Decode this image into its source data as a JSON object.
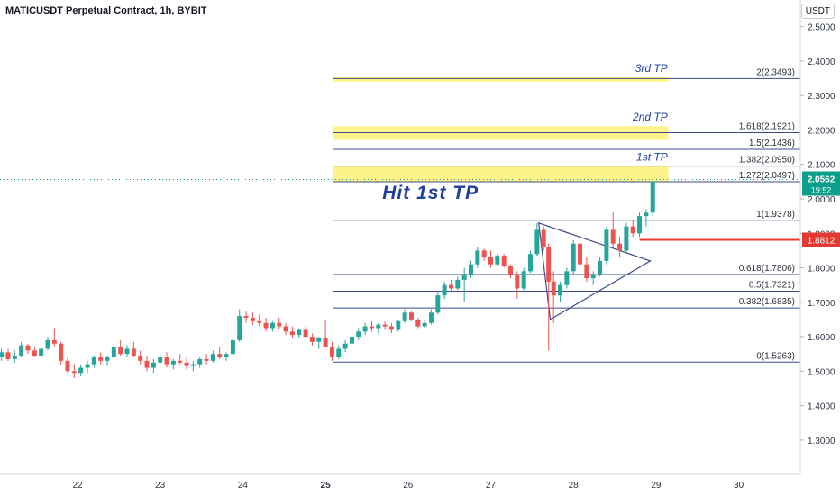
{
  "title": "MATICUSDT Perpetual Contract, 1h, BYBIT",
  "currency": "USDT",
  "colors": {
    "up": "#26a69a",
    "down": "#ef5350",
    "fib": "#3e4a8c",
    "tp_fill": "#fdf38b",
    "annotation": "#1f3f9e",
    "current_price_bg": "#0b9e8a",
    "stop_line": "#e53935",
    "axis_text": "#2e3440",
    "grid": "#f1f3f6"
  },
  "chart_data": {
    "type": "candlestick",
    "ylim": [
      1.25,
      2.52
    ],
    "y_ticks": [
      "1.3000",
      "1.4000",
      "1.5000",
      "1.6000",
      "1.7000",
      "1.8000",
      "1.9000",
      "2.0000",
      "2.1000",
      "2.2000",
      "2.3000",
      "2.4000",
      "2.5000"
    ],
    "x_ticks": [
      "22",
      "23",
      "24",
      "25",
      "26",
      "27",
      "28",
      "29",
      "30"
    ],
    "x_ticks_bold": "25",
    "fib_levels": [
      {
        "label": "0(1.5263)",
        "value": 1.5263
      },
      {
        "label": "0.382(1.6835)",
        "value": 1.6835
      },
      {
        "label": "0.5(1.7321)",
        "value": 1.7321
      },
      {
        "label": "0.618(1.7806)",
        "value": 1.7806
      },
      {
        "label": "1(1.9378)",
        "value": 1.9378
      },
      {
        "label": "1.272(2.0497)",
        "value": 2.0497
      },
      {
        "label": "1.382(2.0950)",
        "value": 2.095
      },
      {
        "label": "1.5(2.1436)",
        "value": 2.1436
      },
      {
        "label": "1.618(2.1921)",
        "value": 2.1921
      },
      {
        "label": "2(2.3493)",
        "value": 2.3493
      }
    ],
    "tp_zones": [
      {
        "label": "1st TP",
        "low": 2.0497,
        "high": 2.095
      },
      {
        "label": "2nd TP",
        "low": 2.171,
        "high": 2.211
      },
      {
        "label": "3rd TP",
        "low": 2.34,
        "high": 2.353
      }
    ],
    "annotation": "Hit 1st TP",
    "current_price": {
      "value": 2.0562,
      "label": "2.0562",
      "countdown": "19:52"
    },
    "stop_level": {
      "value": 1.8812,
      "label": "1.8812"
    },
    "triangle_points": [
      [
        27.58,
        1.93
      ],
      [
        28.93,
        1.82
      ],
      [
        27.72,
        1.65
      ]
    ],
    "candles": [
      [
        20.92,
        1.55,
        1.555,
        1.52,
        1.535
      ],
      [
        21.0,
        1.535,
        1.55,
        1.525,
        1.54
      ],
      [
        21.08,
        1.54,
        1.565,
        1.53,
        1.555
      ],
      [
        21.16,
        1.555,
        1.565,
        1.53,
        1.535
      ],
      [
        21.24,
        1.535,
        1.56,
        1.525,
        1.545
      ],
      [
        21.32,
        1.545,
        1.585,
        1.54,
        1.575
      ],
      [
        21.4,
        1.575,
        1.58,
        1.55,
        1.56
      ],
      [
        21.48,
        1.56,
        1.57,
        1.54,
        1.545
      ],
      [
        21.56,
        1.545,
        1.575,
        1.54,
        1.565
      ],
      [
        21.64,
        1.565,
        1.6,
        1.56,
        1.59
      ],
      [
        21.72,
        1.59,
        1.625,
        1.57,
        1.58
      ],
      [
        21.8,
        1.58,
        1.585,
        1.52,
        1.53
      ],
      [
        21.88,
        1.53,
        1.54,
        1.49,
        1.5
      ],
      [
        21.96,
        1.5,
        1.52,
        1.48,
        1.495
      ],
      [
        22.04,
        1.495,
        1.52,
        1.485,
        1.51
      ],
      [
        22.12,
        1.51,
        1.53,
        1.495,
        1.52
      ],
      [
        22.2,
        1.52,
        1.545,
        1.51,
        1.54
      ],
      [
        22.28,
        1.54,
        1.555,
        1.52,
        1.53
      ],
      [
        22.36,
        1.53,
        1.545,
        1.515,
        1.54
      ],
      [
        22.44,
        1.54,
        1.58,
        1.535,
        1.57
      ],
      [
        22.52,
        1.57,
        1.59,
        1.545,
        1.55
      ],
      [
        22.6,
        1.55,
        1.575,
        1.54,
        1.565
      ],
      [
        22.68,
        1.565,
        1.585,
        1.54,
        1.545
      ],
      [
        22.76,
        1.545,
        1.56,
        1.52,
        1.53
      ],
      [
        22.84,
        1.53,
        1.545,
        1.5,
        1.51
      ],
      [
        22.92,
        1.51,
        1.535,
        1.495,
        1.525
      ],
      [
        23.0,
        1.525,
        1.55,
        1.515,
        1.54
      ],
      [
        23.08,
        1.54,
        1.555,
        1.51,
        1.52
      ],
      [
        23.16,
        1.52,
        1.535,
        1.505,
        1.53
      ],
      [
        23.24,
        1.53,
        1.55,
        1.52,
        1.525
      ],
      [
        23.32,
        1.525,
        1.54,
        1.505,
        1.515
      ],
      [
        23.4,
        1.515,
        1.53,
        1.5,
        1.52
      ],
      [
        23.48,
        1.52,
        1.54,
        1.51,
        1.535
      ],
      [
        23.56,
        1.535,
        1.55,
        1.52,
        1.53
      ],
      [
        23.64,
        1.53,
        1.56,
        1.525,
        1.55
      ],
      [
        23.72,
        1.55,
        1.57,
        1.535,
        1.54
      ],
      [
        23.8,
        1.54,
        1.555,
        1.53,
        1.55
      ],
      [
        23.88,
        1.55,
        1.6,
        1.545,
        1.59
      ],
      [
        23.96,
        1.59,
        1.68,
        1.585,
        1.66
      ],
      [
        24.04,
        1.66,
        1.675,
        1.64,
        1.655
      ],
      [
        24.12,
        1.655,
        1.67,
        1.635,
        1.645
      ],
      [
        24.2,
        1.645,
        1.665,
        1.63,
        1.64
      ],
      [
        24.28,
        1.64,
        1.655,
        1.615,
        1.625
      ],
      [
        24.36,
        1.625,
        1.645,
        1.615,
        1.64
      ],
      [
        24.44,
        1.64,
        1.655,
        1.62,
        1.63
      ],
      [
        24.52,
        1.63,
        1.64,
        1.605,
        1.615
      ],
      [
        24.6,
        1.615,
        1.63,
        1.595,
        1.605
      ],
      [
        24.68,
        1.605,
        1.625,
        1.595,
        1.62
      ],
      [
        24.76,
        1.62,
        1.63,
        1.595,
        1.6
      ],
      [
        24.84,
        1.6,
        1.61,
        1.575,
        1.585
      ],
      [
        24.92,
        1.585,
        1.6,
        1.565,
        1.595
      ],
      [
        25.0,
        1.595,
        1.65,
        1.58,
        1.57
      ],
      [
        25.08,
        1.57,
        1.585,
        1.53,
        1.54
      ],
      [
        25.16,
        1.54,
        1.575,
        1.535,
        1.565
      ],
      [
        25.24,
        1.565,
        1.59,
        1.555,
        1.58
      ],
      [
        25.32,
        1.58,
        1.61,
        1.57,
        1.6
      ],
      [
        25.4,
        1.6,
        1.625,
        1.59,
        1.615
      ],
      [
        25.48,
        1.615,
        1.64,
        1.605,
        1.63
      ],
      [
        25.56,
        1.63,
        1.645,
        1.615,
        1.625
      ],
      [
        25.64,
        1.625,
        1.64,
        1.61,
        1.635
      ],
      [
        25.72,
        1.635,
        1.645,
        1.62,
        1.63
      ],
      [
        25.8,
        1.63,
        1.64,
        1.61,
        1.62
      ],
      [
        25.88,
        1.62,
        1.65,
        1.615,
        1.645
      ],
      [
        25.96,
        1.645,
        1.68,
        1.64,
        1.67
      ],
      [
        26.04,
        1.67,
        1.675,
        1.645,
        1.65
      ],
      [
        26.12,
        1.65,
        1.655,
        1.625,
        1.63
      ],
      [
        26.2,
        1.63,
        1.65,
        1.625,
        1.64
      ],
      [
        26.28,
        1.64,
        1.68,
        1.635,
        1.67
      ],
      [
        26.36,
        1.67,
        1.73,
        1.665,
        1.72
      ],
      [
        26.44,
        1.72,
        1.76,
        1.71,
        1.75
      ],
      [
        26.52,
        1.75,
        1.765,
        1.73,
        1.74
      ],
      [
        26.6,
        1.74,
        1.775,
        1.735,
        1.765
      ],
      [
        26.68,
        1.765,
        1.8,
        1.7,
        1.78
      ],
      [
        26.76,
        1.78,
        1.82,
        1.77,
        1.81
      ],
      [
        26.84,
        1.81,
        1.86,
        1.8,
        1.85
      ],
      [
        26.92,
        1.85,
        1.855,
        1.82,
        1.83
      ],
      [
        27.0,
        1.83,
        1.85,
        1.8,
        1.81
      ],
      [
        27.08,
        1.81,
        1.84,
        1.805,
        1.835
      ],
      [
        27.16,
        1.835,
        1.84,
        1.8,
        1.805
      ],
      [
        27.24,
        1.805,
        1.81,
        1.77,
        1.78
      ],
      [
        27.32,
        1.78,
        1.79,
        1.71,
        1.74
      ],
      [
        27.4,
        1.74,
        1.8,
        1.735,
        1.79
      ],
      [
        27.48,
        1.79,
        1.85,
        1.785,
        1.84
      ],
      [
        27.56,
        1.84,
        1.93,
        1.835,
        1.91
      ],
      [
        27.64,
        1.91,
        1.92,
        1.85,
        1.86
      ],
      [
        27.7,
        1.86,
        1.87,
        1.56,
        1.76
      ],
      [
        27.76,
        1.76,
        1.79,
        1.64,
        1.72
      ],
      [
        27.84,
        1.72,
        1.76,
        1.7,
        1.75
      ],
      [
        27.92,
        1.75,
        1.8,
        1.74,
        1.79
      ],
      [
        28.0,
        1.79,
        1.88,
        1.78,
        1.87
      ],
      [
        28.08,
        1.87,
        1.89,
        1.8,
        1.81
      ],
      [
        28.16,
        1.81,
        1.83,
        1.76,
        1.77
      ],
      [
        28.24,
        1.77,
        1.79,
        1.75,
        1.78
      ],
      [
        28.32,
        1.78,
        1.83,
        1.775,
        1.82
      ],
      [
        28.4,
        1.82,
        1.92,
        1.81,
        1.91
      ],
      [
        28.48,
        1.91,
        1.96,
        1.86,
        1.87
      ],
      [
        28.56,
        1.87,
        1.89,
        1.83,
        1.85
      ],
      [
        28.64,
        1.85,
        1.93,
        1.845,
        1.92
      ],
      [
        28.72,
        1.92,
        1.94,
        1.89,
        1.9
      ],
      [
        28.8,
        1.9,
        1.96,
        1.89,
        1.95
      ],
      [
        28.88,
        1.95,
        1.97,
        1.92,
        1.96
      ],
      [
        28.96,
        1.96,
        2.06,
        1.95,
        2.05
      ]
    ]
  }
}
